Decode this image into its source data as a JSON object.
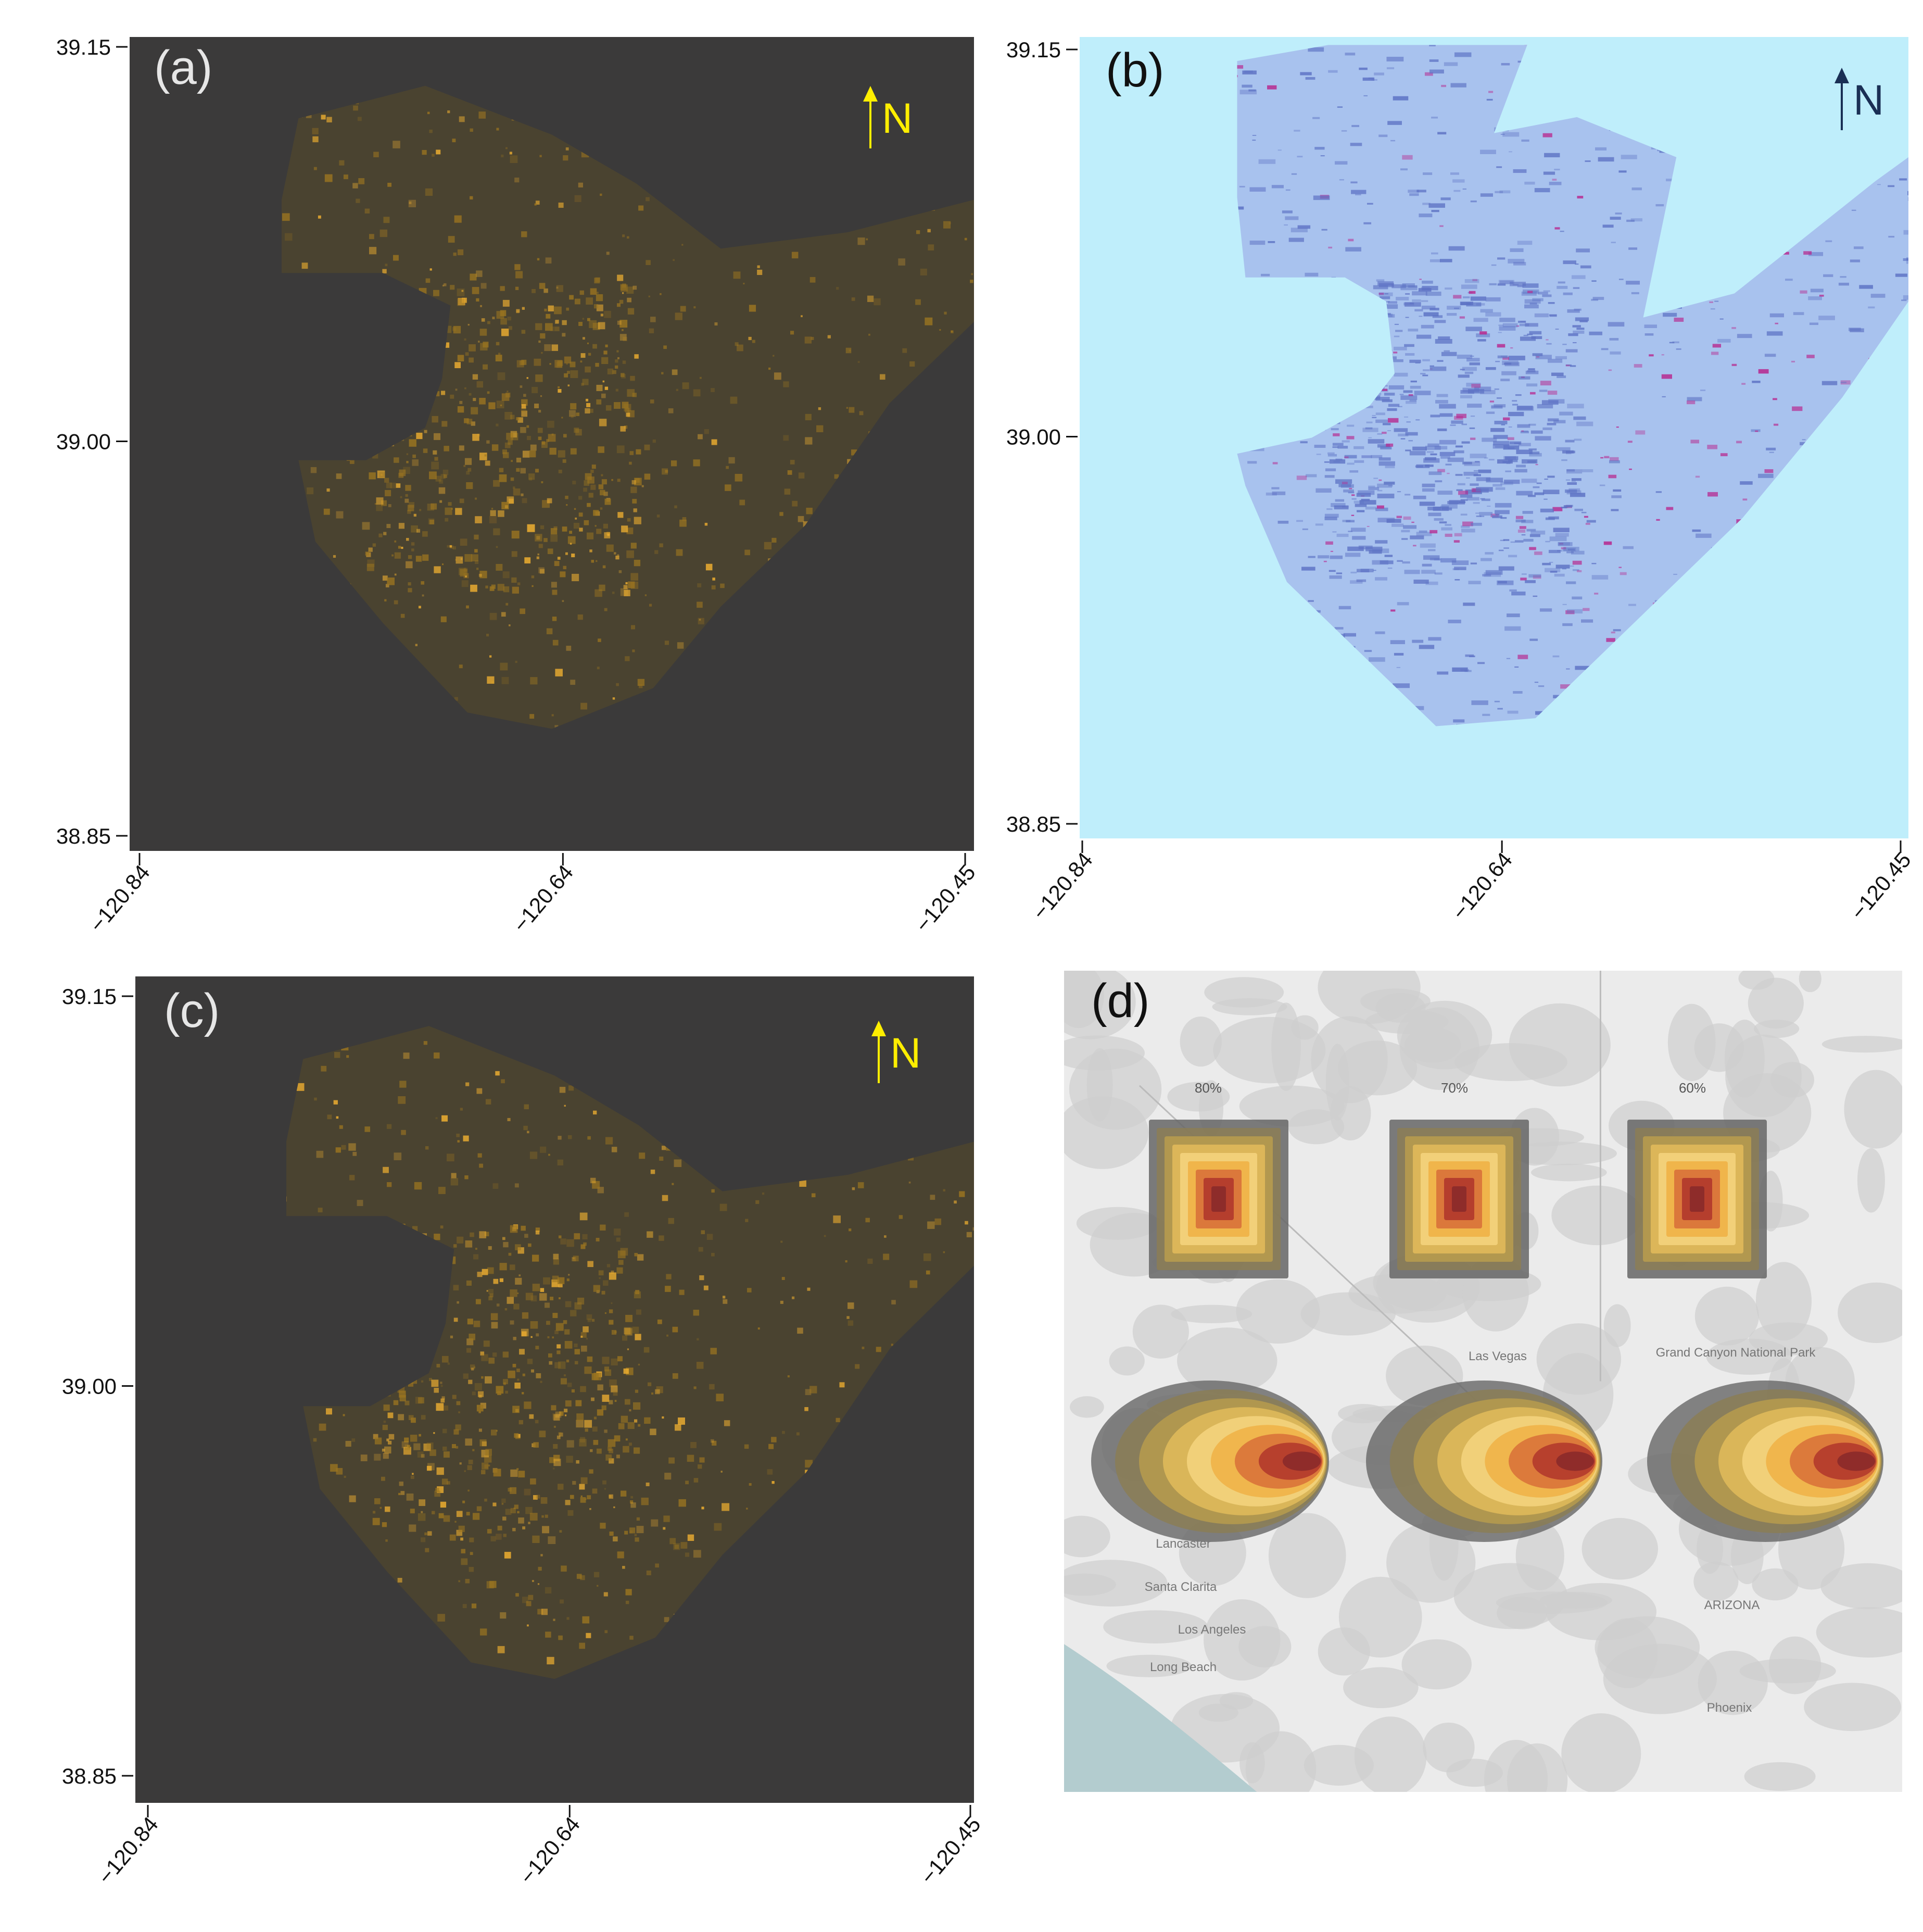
{
  "panels": [
    {
      "label": "(a)",
      "north": "N",
      "xlim": [
        -120.84,
        -120.45
      ],
      "ylim": [
        38.85,
        39.15
      ],
      "xticks": [
        {
          "value": -120.84,
          "label": "−120.84"
        },
        {
          "value": -120.64,
          "label": "−120.64"
        },
        {
          "value": -120.45,
          "label": "−120.45"
        }
      ],
      "yticks": [
        39.15,
        {
          "value": 39.0,
          "label": "39.00"
        },
        38.85
      ]
    },
    {
      "label": "(b)",
      "north": "N",
      "xlim": [
        -120.84,
        -120.45
      ],
      "ylim": [
        38.85,
        39.15
      ],
      "xticks": [
        {
          "value": -120.84,
          "label": "−120.84"
        },
        {
          "value": -120.64,
          "label": "−120.64"
        },
        {
          "value": -120.45,
          "label": "−120.45"
        }
      ],
      "yticks": [
        39.15,
        {
          "value": 39.0,
          "label": "39.00"
        },
        38.85
      ]
    },
    {
      "label": "(c)",
      "north": "N",
      "xlim": [
        -120.84,
        -120.45
      ],
      "ylim": [
        38.85,
        39.15
      ],
      "xticks": [
        {
          "value": -120.84,
          "label": "−120.84"
        },
        {
          "value": -120.64,
          "label": "−120.64"
        },
        {
          "value": -120.45,
          "label": "−120.45"
        }
      ],
      "yticks": [
        39.15,
        {
          "value": 39.0,
          "label": "39.00"
        },
        38.85
      ]
    },
    {
      "label": "(d)",
      "percent_labels": [
        "80%",
        "70%",
        "60%"
      ],
      "place_labels": [
        "Las Vegas",
        "Grand Canyon National Park",
        "Lancaster",
        "Santa Clarita",
        "Los Angeles",
        "Long Beach",
        "ARIZONA",
        "Phoenix"
      ]
    }
  ]
}
